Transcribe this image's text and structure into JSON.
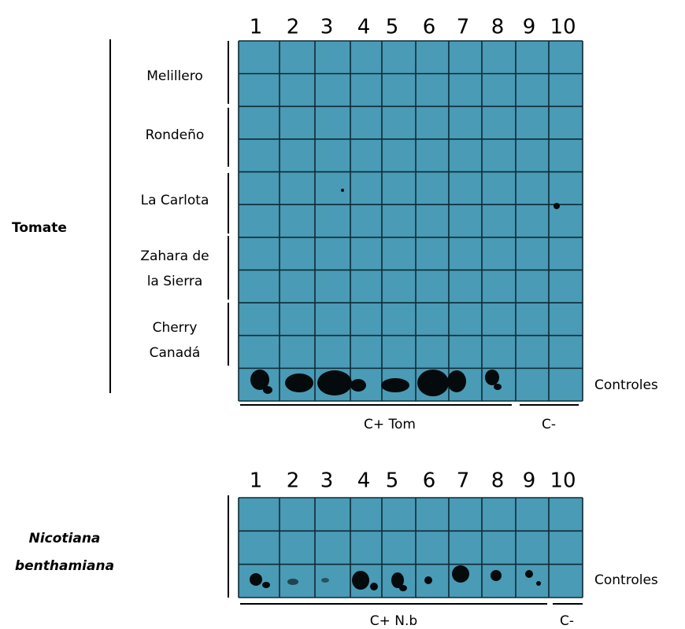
{
  "top": {
    "columns": [
      "1",
      "2",
      "3",
      "4",
      "5",
      "6",
      "7",
      "8",
      "9",
      "10"
    ],
    "group": "Tomate",
    "rows": [
      [
        "Melillero"
      ],
      [
        "Rondeño"
      ],
      [
        "La Carlota"
      ],
      [
        "Zahara de",
        "la Sierra"
      ],
      [
        "Cherry",
        "Canadá"
      ]
    ],
    "controls": "Controles",
    "positive": "C+ Tom",
    "negative": "C-"
  },
  "bottom": {
    "columns": [
      "1",
      "2",
      "3",
      "4",
      "5",
      "6",
      "7",
      "8",
      "9",
      "10"
    ],
    "group": [
      "Nicotiana",
      "benthamiana"
    ],
    "controls": "Controles",
    "positive": "C+ N.b",
    "negative": "C-"
  }
}
